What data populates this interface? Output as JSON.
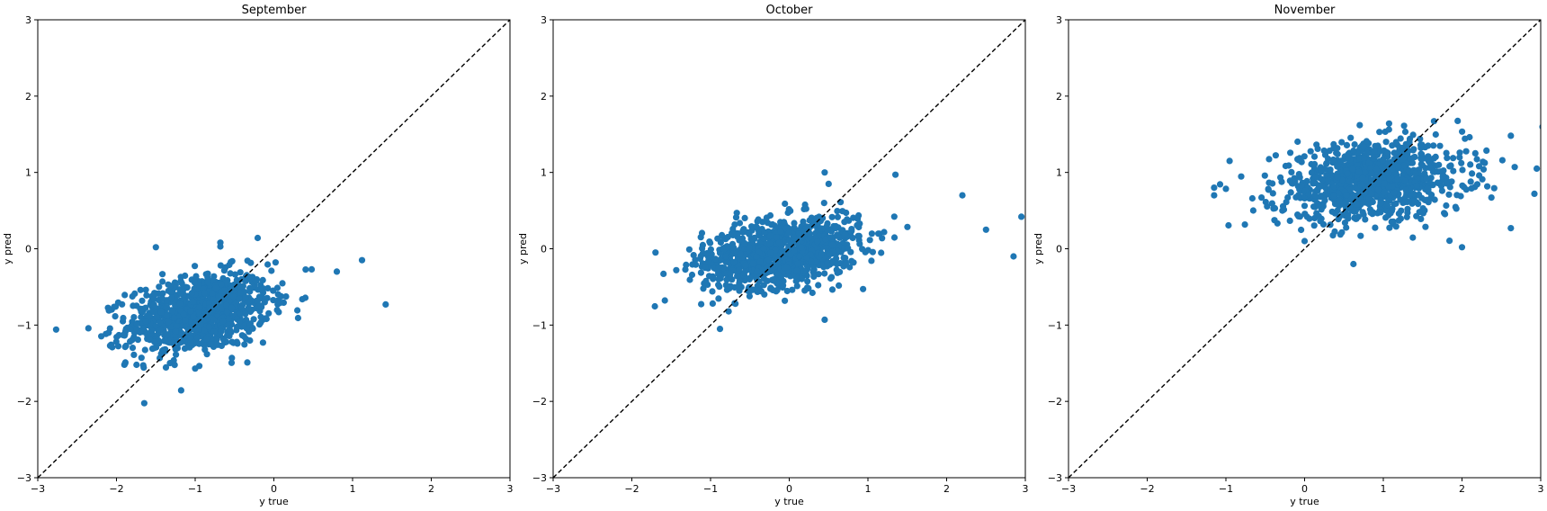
{
  "figure": {
    "point_color": "#1f77b4",
    "diag_color": "#000000",
    "point_count_estimate": "approx. 1000 per panel (dense cloud)"
  },
  "chart_data": [
    {
      "type": "scatter",
      "title": "September",
      "xlabel": "y true",
      "ylabel": "y pred",
      "xlim": [
        -3,
        3
      ],
      "ylim": [
        -3,
        3
      ],
      "xticks": [
        "−3",
        "−2",
        "−1",
        "0",
        "1",
        "2",
        "3"
      ],
      "yticks": [
        "−3",
        "−2",
        "−1",
        "0",
        "1",
        "2",
        "3"
      ],
      "reference_line": "y = x (dashed)",
      "cloud": {
        "x_center": -0.95,
        "x_spread": 0.45,
        "y_center": -0.85,
        "y_spread": 0.25,
        "slope": 0.18,
        "n": 1000
      },
      "outliers": [
        [
          -1.5,
          0.02
        ],
        [
          -0.68,
          0.08
        ],
        [
          -0.68,
          0.03
        ],
        [
          1.12,
          -0.15
        ],
        [
          1.42,
          -0.73
        ],
        [
          0.8,
          -0.3
        ],
        [
          -1.9,
          -1.52
        ],
        [
          -1.0,
          -1.57
        ],
        [
          0.48,
          -0.27
        ],
        [
          -2.1,
          -1.1
        ]
      ]
    },
    {
      "type": "scatter",
      "title": "October",
      "xlabel": "y true",
      "ylabel": "y pred",
      "xlim": [
        -3,
        3
      ],
      "ylim": [
        -3,
        3
      ],
      "xticks": [
        "−3",
        "−2",
        "−1",
        "0",
        "1",
        "2",
        "3"
      ],
      "yticks": [
        "−3",
        "−2",
        "−1",
        "0",
        "1",
        "2",
        "3"
      ],
      "reference_line": "y = x (dashed)",
      "cloud": {
        "x_center": -0.1,
        "x_spread": 0.5,
        "y_center": -0.05,
        "y_spread": 0.22,
        "slope": 0.15,
        "n": 1000
      },
      "outliers": [
        [
          -1.7,
          -0.05
        ],
        [
          -0.88,
          -1.05
        ],
        [
          -0.77,
          -0.82
        ],
        [
          0.45,
          1.0
        ],
        [
          0.5,
          0.85
        ],
        [
          1.35,
          0.97
        ],
        [
          2.2,
          0.7
        ],
        [
          2.95,
          0.42
        ],
        [
          2.85,
          -0.1
        ],
        [
          0.45,
          -0.93
        ],
        [
          2.5,
          0.25
        ]
      ]
    },
    {
      "type": "scatter",
      "title": "November",
      "xlabel": "y true",
      "ylabel": "y pred",
      "xlim": [
        -3,
        3
      ],
      "ylim": [
        -3,
        3
      ],
      "xticks": [
        "−3",
        "−2",
        "−1",
        "0",
        "1",
        "2",
        "3"
      ],
      "yticks": [
        "−3",
        "−2",
        "−1",
        "0",
        "1",
        "2",
        "3"
      ],
      "reference_line": "y = x (dashed)",
      "cloud": {
        "x_center": 0.85,
        "x_spread": 0.6,
        "y_center": 0.88,
        "y_spread": 0.25,
        "slope": 0.08,
        "n": 1000
      },
      "outliers": [
        [
          -1.15,
          0.7
        ],
        [
          -1.15,
          0.8
        ],
        [
          0.62,
          -0.2
        ],
        [
          2.62,
          1.48
        ],
        [
          2.95,
          1.05
        ],
        [
          0.7,
          1.62
        ],
        [
          2.0,
          0.02
        ],
        [
          2.62,
          0.27
        ],
        [
          2.92,
          0.72
        ],
        [
          0.0,
          0.1
        ]
      ]
    }
  ]
}
